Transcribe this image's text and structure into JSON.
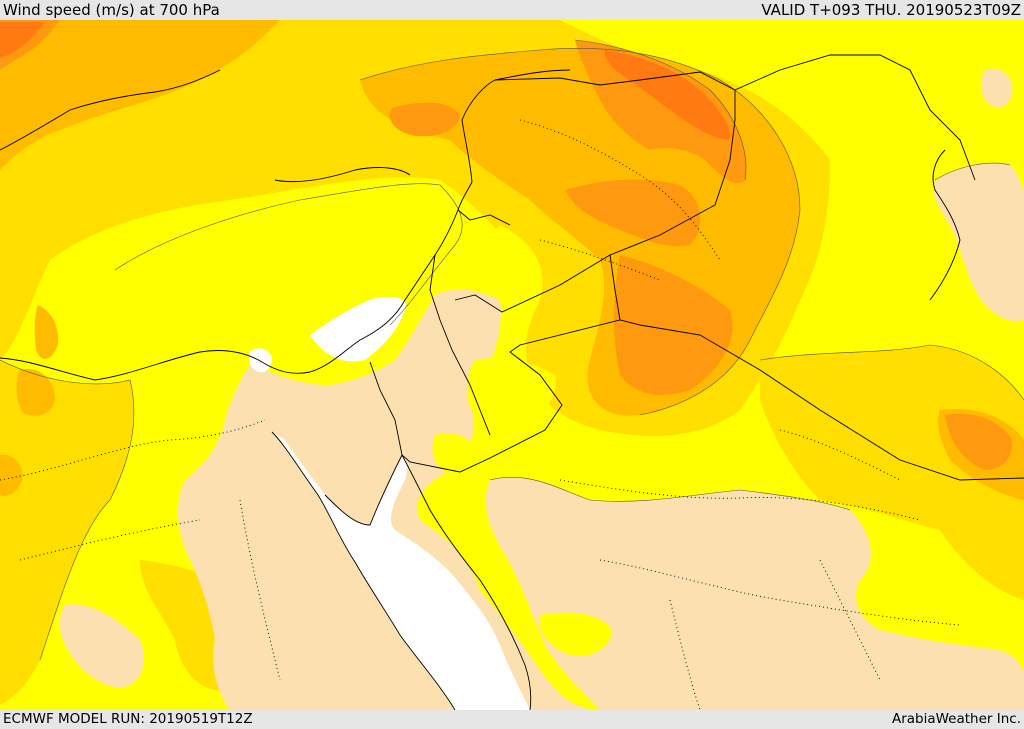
{
  "header": {
    "title": "Wind speed (m/s) at 700 hPa",
    "valid": "VALID T+093 THU. 20190523T09Z"
  },
  "footer": {
    "model_run": "ECMWF MODEL RUN: 20190519T12Z",
    "credit": "ArabiaWeather Inc."
  },
  "colors": {
    "calm": "#fde0b0",
    "light": "#ffff00",
    "moderate": "#ffde00",
    "fresh": "#ffbb00",
    "strong": "#ff9a10",
    "very_strong": "#ff7a10",
    "missing": "#ffffff"
  }
}
